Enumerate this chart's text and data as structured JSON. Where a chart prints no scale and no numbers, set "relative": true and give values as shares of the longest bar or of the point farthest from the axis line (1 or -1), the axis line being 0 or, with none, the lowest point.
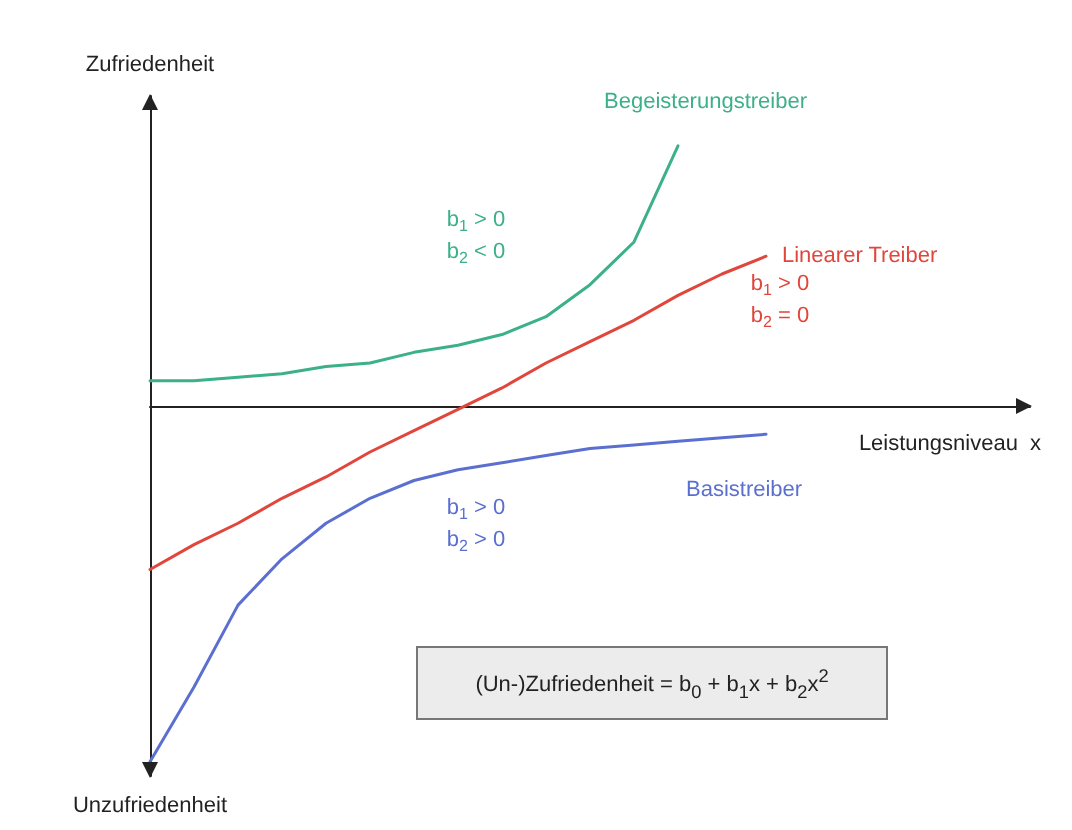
{
  "chart_data": {
    "type": "line",
    "relative": true,
    "ylabel": "Zufriedenheit",
    "xlabel": "Leistungsniveau  x",
    "legend": false,
    "marker": "none",
    "line_style": "solid",
    "grid": false,
    "categories": [
      null,
      null,
      null,
      null,
      null,
      null,
      null,
      null,
      null,
      null,
      null,
      null,
      null,
      null,
      null,
      null,
      null,
      null,
      null,
      null,
      null
    ],
    "series": [
      {
        "name": "Begeisterungstreiber",
        "color": "#3cb08a",
        "values": [
          0.07,
          0.07,
          0.08,
          0.09,
          0.11,
          0.12,
          0.15,
          0.17,
          0.2,
          0.25,
          0.34,
          0.46,
          0.73,
          null,
          null,
          null,
          null,
          null,
          null,
          null,
          null
        ]
      },
      {
        "name": "Linearer Treiber",
        "color": "#e0463c",
        "values": [
          -0.46,
          -0.39,
          -0.33,
          -0.26,
          -0.2,
          -0.13,
          -0.07,
          -0.01,
          0.05,
          0.12,
          0.18,
          0.24,
          0.31,
          0.37,
          0.42,
          null,
          null,
          null,
          null,
          null,
          null
        ]
      },
      {
        "name": "Basistreiber",
        "color": "#5b6fd0",
        "values": [
          -1,
          -0.79,
          -0.56,
          -0.43,
          -0.33,
          -0.26,
          -0.21,
          -0.18,
          -0.16,
          -0.14,
          -0.12,
          -0.11,
          -0.1,
          -0.09,
          -0.08,
          null,
          null,
          null,
          null,
          null,
          null
        ]
      }
    ],
    "annotations": [
      "b$_{1}$ > 0\nb$_{2}$ < 0",
      "b$_{1}$ > 0\nb$_{2}$ = 0",
      "b$_{1}$ > 0\nb$_{2}$ > 0",
      "(Un-)Zufriedenheit = b$_{0}$ + b$_{1}$x + b$_{2}$x$^{2}$",
      "Unzufriedenheit"
    ]
  }
}
